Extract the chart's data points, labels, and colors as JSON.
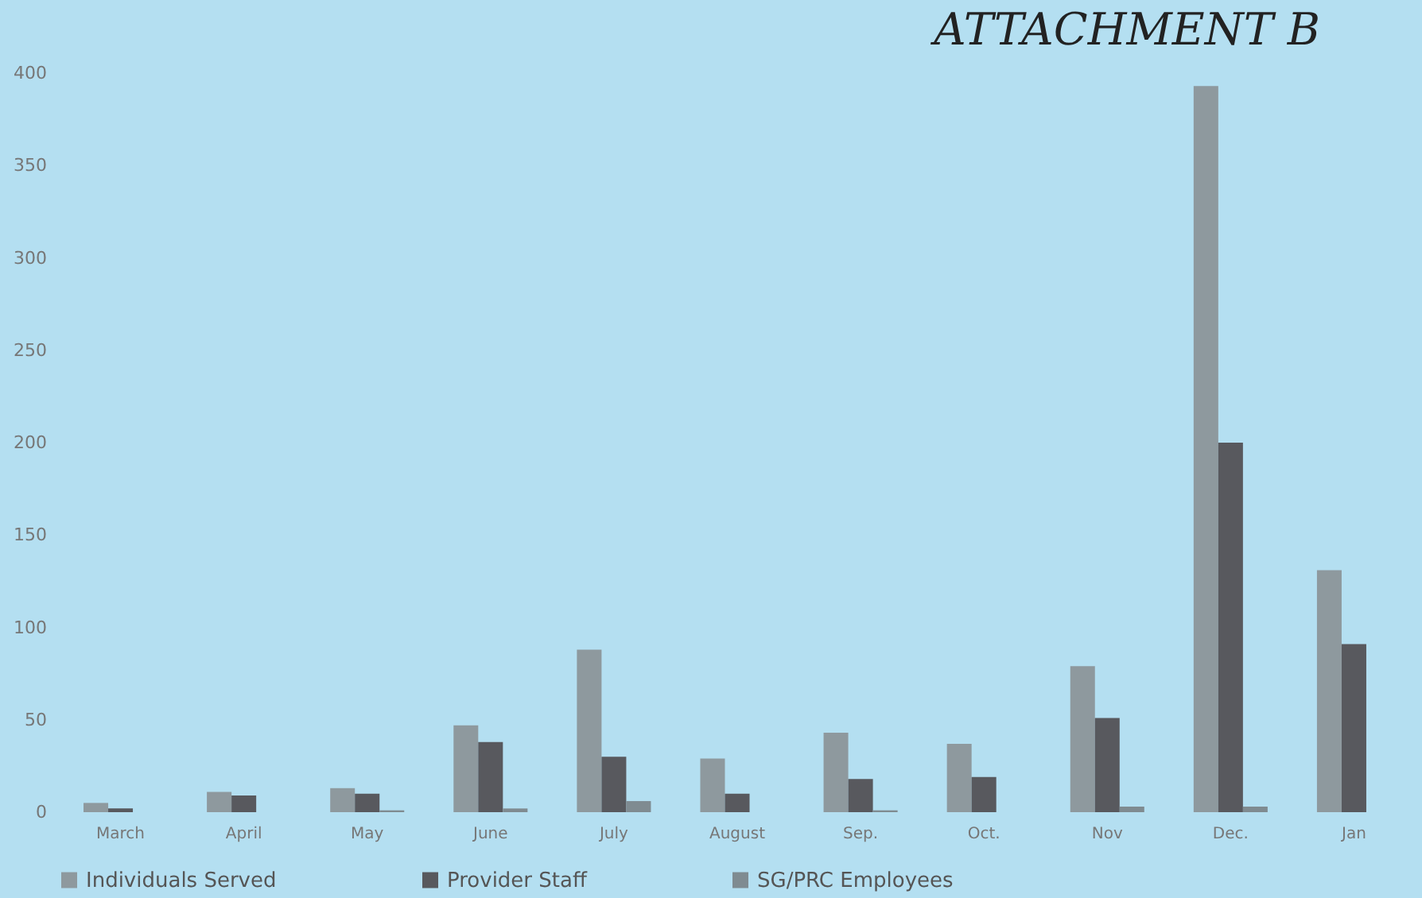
{
  "chart_data": {
    "type": "bar",
    "annotations": [
      "ATTACHMENT B"
    ],
    "categories": [
      "March",
      "April",
      "May",
      "June",
      "July",
      "August",
      "Sep.",
      "Oct.",
      "Nov",
      "Dec.",
      "Jan"
    ],
    "series": [
      {
        "name": "Individuals Served",
        "color": "#8e999e",
        "values": [
          5,
          11,
          13,
          47,
          88,
          29,
          43,
          37,
          79,
          393,
          131
        ]
      },
      {
        "name": "Provider Staff",
        "color": "#58595e",
        "values": [
          2,
          9,
          10,
          38,
          30,
          10,
          18,
          19,
          51,
          200,
          91
        ]
      },
      {
        "name": "SG/PRC Employees",
        "color": "#7f8b91",
        "values": [
          0,
          0,
          1,
          2,
          6,
          0,
          1,
          0,
          3,
          3,
          0
        ]
      }
    ],
    "ylim": [
      0,
      400
    ],
    "yticks": [
      0,
      50,
      100,
      150,
      200,
      250,
      300,
      350,
      400
    ],
    "grid": false,
    "legend": "bottom"
  }
}
